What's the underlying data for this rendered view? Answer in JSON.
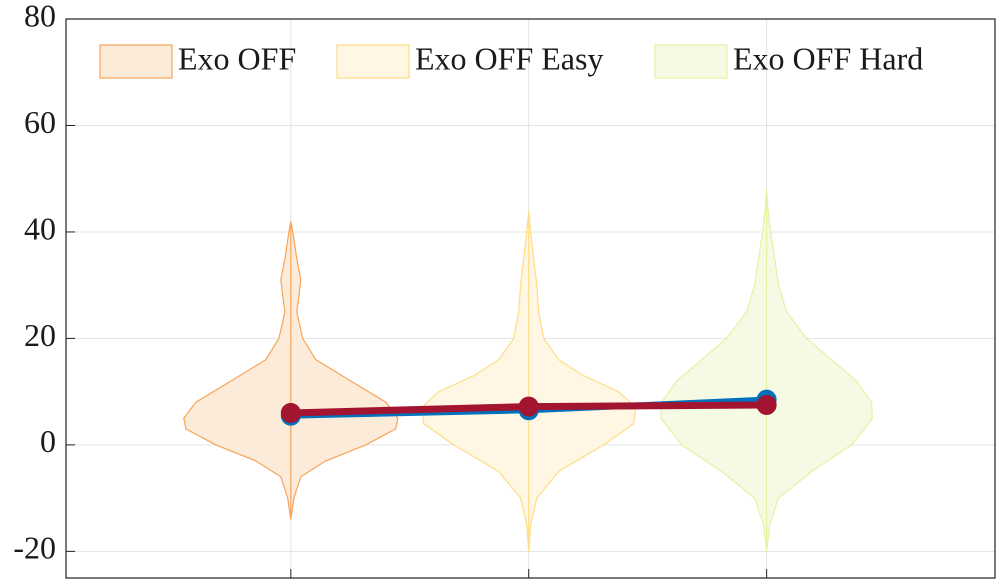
{
  "chart_data": {
    "type": "violin",
    "xlim": [
      0.055,
      3.96
    ],
    "xticks": [
      1,
      2,
      3
    ],
    "ylim": [
      -25,
      80
    ],
    "yticks": [
      -20,
      0,
      20,
      40,
      60,
      80
    ],
    "grid": true,
    "legend": "top",
    "violins": [
      {
        "name": "Exo OFF",
        "color": "#fdebd9",
        "edge": "#f5a55a",
        "position": 1,
        "y": [
          -14,
          -10,
          -6,
          -3,
          0,
          3,
          5,
          8,
          12,
          16,
          20,
          25,
          28,
          31,
          35,
          40,
          42
        ],
        "width": [
          0,
          0.013,
          0.042,
          0.147,
          0.315,
          0.441,
          0.45,
          0.4,
          0.252,
          0.105,
          0.05,
          0.025,
          0.034,
          0.042,
          0.025,
          0.008,
          0
        ]
      },
      {
        "name": "Exo OFF Easy",
        "color": "#fff7e3",
        "edge": "#ffdc85",
        "position": 2,
        "y": [
          -20,
          -15,
          -10,
          -5,
          0,
          4,
          7,
          10,
          13,
          16,
          20,
          25,
          30,
          35,
          40,
          44
        ],
        "width": [
          0,
          0.008,
          0.034,
          0.126,
          0.315,
          0.441,
          0.45,
          0.378,
          0.231,
          0.126,
          0.063,
          0.042,
          0.034,
          0.021,
          0.008,
          0
        ]
      },
      {
        "name": "Exo OFF Hard",
        "color": "#f5fae4",
        "edge": "#e3f3a2",
        "position": 3,
        "y": [
          -20,
          -15,
          -10,
          -5,
          0,
          5,
          8,
          12,
          16,
          20,
          25,
          30,
          35,
          40,
          45,
          48
        ],
        "width": [
          0,
          0.013,
          0.05,
          0.189,
          0.357,
          0.445,
          0.441,
          0.378,
          0.273,
          0.168,
          0.084,
          0.05,
          0.034,
          0.017,
          0.004,
          0
        ]
      }
    ],
    "x": [
      1,
      2,
      3
    ],
    "series": [
      {
        "color": "#0072bd",
        "values": [
          5.5,
          6.5,
          8.5
        ]
      },
      {
        "color": "#a2142f",
        "values": [
          6,
          7.2,
          7.5
        ]
      }
    ]
  }
}
